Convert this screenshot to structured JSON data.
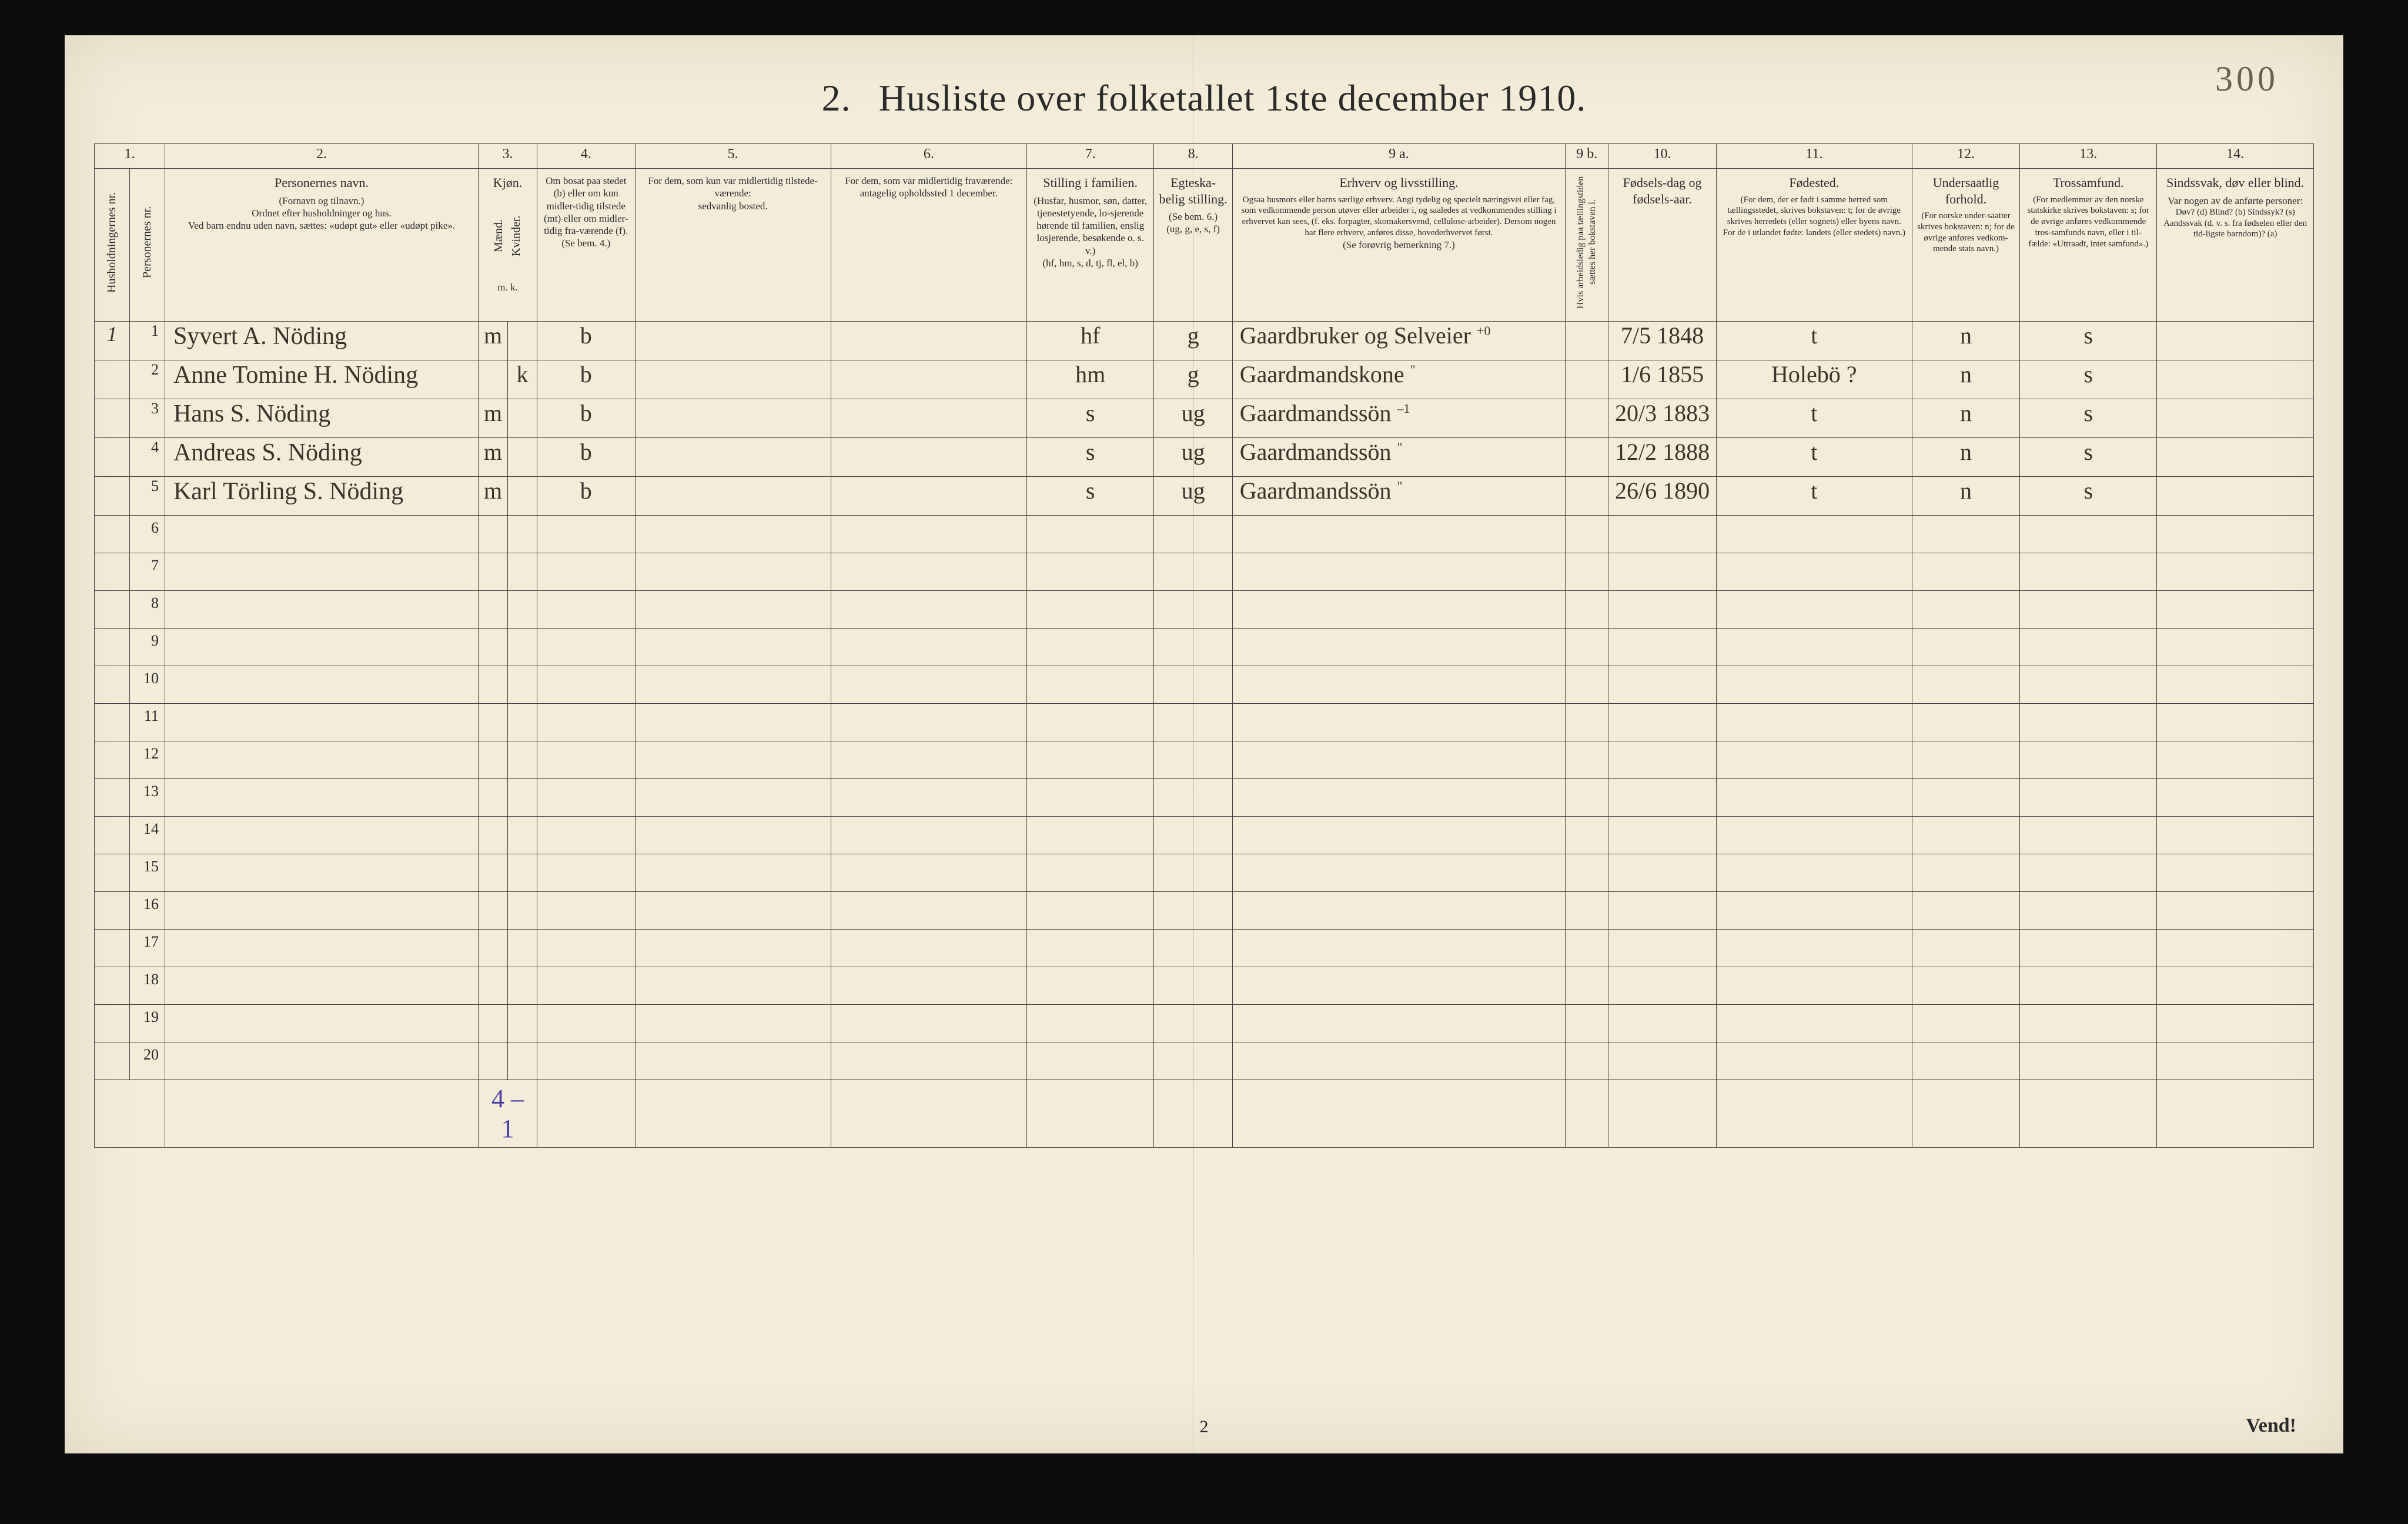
{
  "page_number_written": "300",
  "title_prefix": "2.",
  "title": "Husliste over folketallet 1ste december 1910.",
  "columns": {
    "numbers": [
      "1.",
      "2.",
      "3.",
      "4.",
      "5.",
      "6.",
      "7.",
      "8.",
      "9 a.",
      "9 b.",
      "10.",
      "11.",
      "12.",
      "13.",
      "14."
    ],
    "c1a": "Husholdningernes nr.",
    "c1b": "Personernes nr.",
    "c2": {
      "label": "Personernes navn.",
      "sub1": "(Fornavn og tilnavn.)",
      "sub2": "Ordnet efter husholdninger og hus.",
      "sub3": "Ved barn endnu uden navn, sættes: «udøpt gut» eller «udøpt pike»."
    },
    "c3": {
      "label": "Kjøn.",
      "sub_a": "Mænd.",
      "sub_b": "Kvinder.",
      "sub_row": "m.  k."
    },
    "c4": {
      "label": "Om bosat paa stedet (b) eller om kun midler-tidig tilstede (mt) eller om midler-tidig fra-værende (f).",
      "note": "(Se bem. 4.)"
    },
    "c5": {
      "label": "For dem, som kun var midlertidig tilstede-værende:",
      "sub": "sedvanlig bosted."
    },
    "c6": {
      "label": "For dem, som var midlertidig fraværende:",
      "sub": "antagelig opholdssted 1 december."
    },
    "c7": {
      "label": "Stilling i familien.",
      "sub": "(Husfar, husmor, søn, datter, tjenestetyende, lo-sjerende hørende til familien, enslig losjerende, besøkende o. s. v.)",
      "note": "(hf, hm, s, d, tj, fl, el, b)"
    },
    "c8": {
      "label": "Egteska-belig stilling.",
      "note": "(Se bem. 6.)",
      "note2": "(ug, g, e, s, f)"
    },
    "c9a": {
      "label": "Erhverv og livsstilling.",
      "sub": "Ogsaa husmors eller barns særlige erhverv. Angi tydelig og specielt næringsvei eller fag, som vedkommende person utøver eller arbeider i, og saaledes at vedkommendes stilling i erhvervet kan sees, (f. eks. forpagter, skomakersvend, cellulose-arbeider). Dersom nogen har flere erhverv, anføres disse, hovederhvervet først.",
      "note": "(Se forøvrig bemerkning 7.)"
    },
    "c9b": "Hvis arbeidsledig paa tællingstiden sættes her bokstaven l.",
    "c10": {
      "label": "Fødsels-dag og fødsels-aar."
    },
    "c11": {
      "label": "Fødested.",
      "sub": "(For dem, der er født i samme herred som tællingsstedet, skrives bokstaven: t; for de øvrige skrives herredets (eller sognets) eller byens navn. For de i utlandet fødte: landets (eller stedets) navn.)"
    },
    "c12": {
      "label": "Undersaatlig forhold.",
      "sub": "(For norske under-saatter skrives bokstaven: n; for de øvrige anføres vedkom-mende stats navn.)"
    },
    "c13": {
      "label": "Trossamfund.",
      "sub": "(For medlemmer av den norske statskirke skrives bokstaven: s; for de øvrige anføres vedkommende tros-samfunds navn, eller i til-fælde: «Uttraadt, intet samfund».)"
    },
    "c14": {
      "label": "Sindssvak, døv eller blind.",
      "sub": "Var nogen av de anførte personer:",
      "opts": "Døv? (d)  Blind? (b)  Sindssyk? (s)  Aandssvak (d. v. s. fra fødselen eller den tid-ligste barndom)? (a)"
    }
  },
  "rows": [
    {
      "hh": "1",
      "pn": "1",
      "name": "Syvert A. Nöding",
      "sex": "m",
      "res": "b",
      "fam": "hf",
      "mar": "g",
      "occ": "Gaardbruker og Selveier",
      "occ_note": "+0",
      "dob": "7/5 1848",
      "birthplace": "t",
      "nat": "n",
      "rel": "s"
    },
    {
      "hh": "",
      "pn": "2",
      "name": "Anne Tomine H. Nöding",
      "sex": "k",
      "res": "b",
      "fam": "hm",
      "mar": "g",
      "occ": "Gaardmandskone",
      "occ_note": "\"",
      "dob": "1/6 1855",
      "birthplace": "Holebö ?",
      "nat": "n",
      "rel": "s"
    },
    {
      "hh": "",
      "pn": "3",
      "name": "Hans S. Nöding",
      "sex": "m",
      "res": "b",
      "fam": "s",
      "mar": "ug",
      "occ": "Gaardmandssön",
      "occ_note": "–1",
      "dob": "20/3 1883",
      "birthplace": "t",
      "nat": "n",
      "rel": "s"
    },
    {
      "hh": "",
      "pn": "4",
      "name": "Andreas S. Nöding",
      "sex": "m",
      "res": "b",
      "fam": "s",
      "mar": "ug",
      "occ": "Gaardmandssön",
      "occ_note": "\"",
      "dob": "12/2 1888",
      "birthplace": "t",
      "nat": "n",
      "rel": "s"
    },
    {
      "hh": "",
      "pn": "5",
      "name": "Karl Törling S. Nöding",
      "sex": "m",
      "res": "b",
      "fam": "s",
      "mar": "ug",
      "occ": "Gaardmandssön",
      "occ_note": "\"",
      "dob": "26/6 1890",
      "birthplace": "t",
      "nat": "n",
      "rel": "s"
    }
  ],
  "empty_row_numbers": [
    "6",
    "7",
    "8",
    "9",
    "10",
    "11",
    "12",
    "13",
    "14",
    "15",
    "16",
    "17",
    "18",
    "19",
    "20"
  ],
  "foot_tally": "4 – 1",
  "bottom_page_num": "2",
  "vend": "Vend!",
  "colors": {
    "paper": "#f3ecd9",
    "ink_print": "#2b2b2b",
    "ink_hand": "#3a342c",
    "ink_purple": "#4a3fa6",
    "frame": "#0d0d0d",
    "border": "#444"
  },
  "col_widths_pct": [
    1.8,
    1.8,
    16,
    1.5,
    1.5,
    5,
    10,
    10,
    6.5,
    4,
    17,
    2.2,
    5.5,
    10,
    5.5,
    7,
    8
  ],
  "fontsizes": {
    "title": 64,
    "header_text": 20,
    "row_number": 26,
    "handwriting": 40,
    "name_hand": 42
  }
}
